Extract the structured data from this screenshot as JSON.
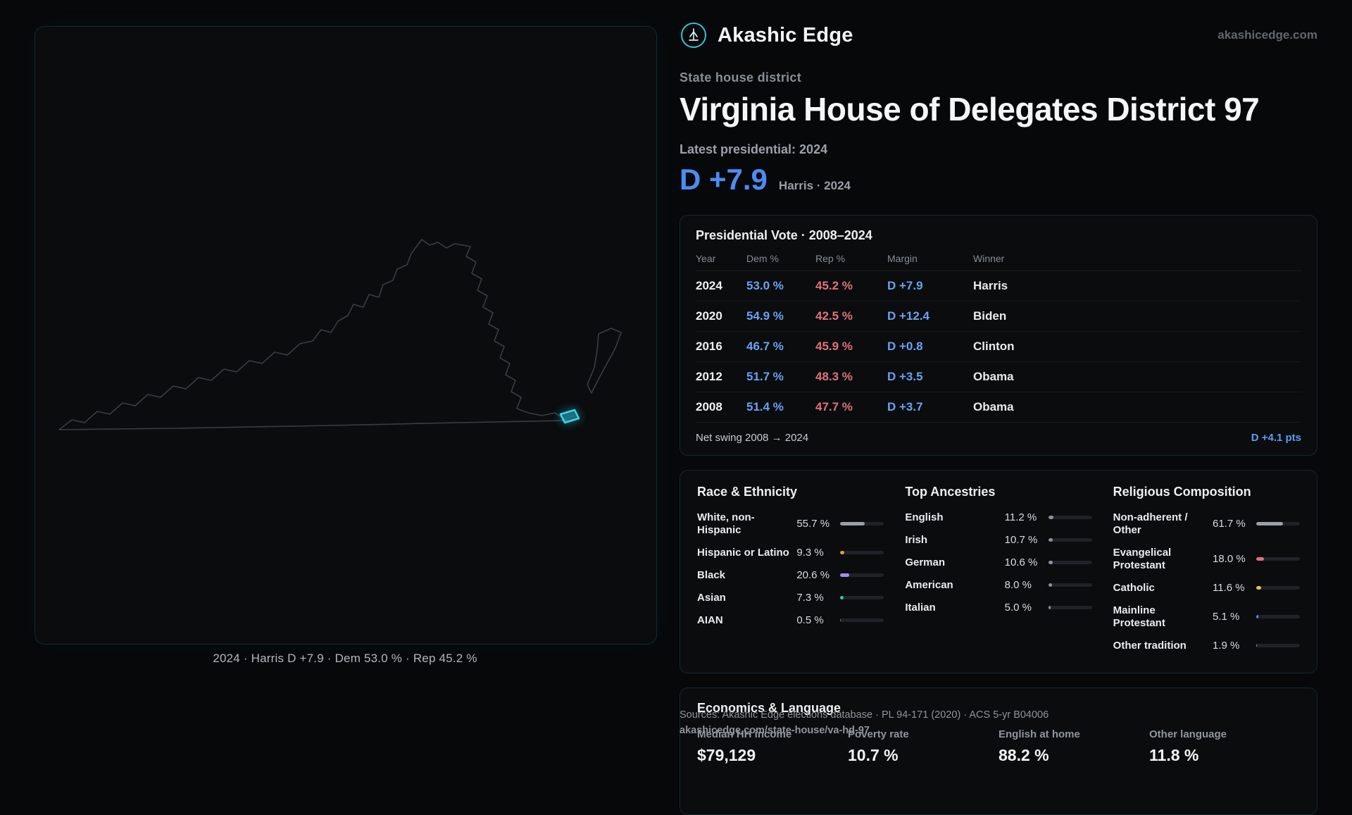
{
  "brand": {
    "name": "Akashic Edge",
    "domain": "akashicedge.com"
  },
  "header": {
    "kicker": "State house district",
    "title": "Virginia House of Delegates District 97",
    "latest_label": "Latest presidential: 2024",
    "margin": "D +7.9",
    "margin_context": "Harris · 2024"
  },
  "map": {
    "caption": "2024 · Harris D +7.9 · Dem 53.0 % · Rep 45.2 %",
    "highlight_color": "#35d6f0"
  },
  "presidential": {
    "title": "Presidential Vote · 2008–2024",
    "columns": [
      "Year",
      "Dem %",
      "Rep %",
      "Margin",
      "Winner"
    ],
    "rows": [
      {
        "year": "2024",
        "dem": "53.0 %",
        "rep": "45.2 %",
        "margin": "D +7.9",
        "winner": "Harris"
      },
      {
        "year": "2020",
        "dem": "54.9 %",
        "rep": "42.5 %",
        "margin": "D +12.4",
        "winner": "Biden"
      },
      {
        "year": "2016",
        "dem": "46.7 %",
        "rep": "45.9 %",
        "margin": "D +0.8",
        "winner": "Clinton"
      },
      {
        "year": "2012",
        "dem": "51.7 %",
        "rep": "48.3 %",
        "margin": "D +3.5",
        "winner": "Obama"
      },
      {
        "year": "2008",
        "dem": "51.4 %",
        "rep": "47.7 %",
        "margin": "D +3.7",
        "winner": "Obama"
      }
    ],
    "net_swing_label": "Net swing 2008 → 2024",
    "net_swing_value": "D +4.1 pts"
  },
  "demographics": {
    "race": {
      "title": "Race & Ethnicity",
      "items": [
        {
          "label": "White, non-Hispanic",
          "display": "55.7 %",
          "value": 55.7,
          "color": "#9aa0a8"
        },
        {
          "label": "Hispanic or Latino",
          "display": "9.3 %",
          "value": 9.3,
          "color": "#e8944a"
        },
        {
          "label": "Black",
          "display": "20.6 %",
          "value": 20.6,
          "color": "#a78bfa"
        },
        {
          "label": "Asian",
          "display": "7.3 %",
          "value": 7.3,
          "color": "#2dd4a0"
        },
        {
          "label": "AIAN",
          "display": "0.5 %",
          "value": 0.5,
          "color": "#e05c5c"
        }
      ]
    },
    "ancestries": {
      "title": "Top Ancestries",
      "items": [
        {
          "label": "English",
          "display": "11.2 %",
          "value": 11.2,
          "color": "#8a93a3"
        },
        {
          "label": "Irish",
          "display": "10.7 %",
          "value": 10.7,
          "color": "#8a93a3"
        },
        {
          "label": "German",
          "display": "10.6 %",
          "value": 10.6,
          "color": "#8a93a3"
        },
        {
          "label": "American",
          "display": "8.0 %",
          "value": 8.0,
          "color": "#8a93a3"
        },
        {
          "label": "Italian",
          "display": "5.0 %",
          "value": 5.0,
          "color": "#8a93a3"
        }
      ]
    },
    "religion": {
      "title": "Religious Composition",
      "items": [
        {
          "label": "Non-adherent / Other",
          "display": "61.7 %",
          "value": 61.7,
          "color": "#9aa0a8"
        },
        {
          "label": "Evangelical Protestant",
          "display": "18.0 %",
          "value": 18.0,
          "color": "#e0707a"
        },
        {
          "label": "Catholic",
          "display": "11.6 %",
          "value": 11.6,
          "color": "#e6c34c"
        },
        {
          "label": "Mainline Protestant",
          "display": "5.1 %",
          "value": 5.1,
          "color": "#5b8ee6"
        },
        {
          "label": "Other tradition",
          "display": "1.9 %",
          "value": 1.9,
          "color": "#9aa0a8"
        }
      ]
    }
  },
  "economics": {
    "title": "Economics & Language",
    "stats": [
      {
        "label": "Median HH income",
        "value": "$79,129"
      },
      {
        "label": "Poverty rate",
        "value": "10.7 %"
      },
      {
        "label": "English at home",
        "value": "88.2 %"
      },
      {
        "label": "Other language",
        "value": "11.8 %"
      }
    ]
  },
  "footer": {
    "sources": "Sources: Akashic Edge elections database · PL 94-171 (2020) · ACS 5-yr B04006",
    "permalink": "akashicedge.com/state-house/va-hd-97"
  },
  "colors": {
    "dem": "#6aa2f2",
    "rep": "#e2717c",
    "accent": "#2bc7d4",
    "highlight": "#35d6f0"
  }
}
